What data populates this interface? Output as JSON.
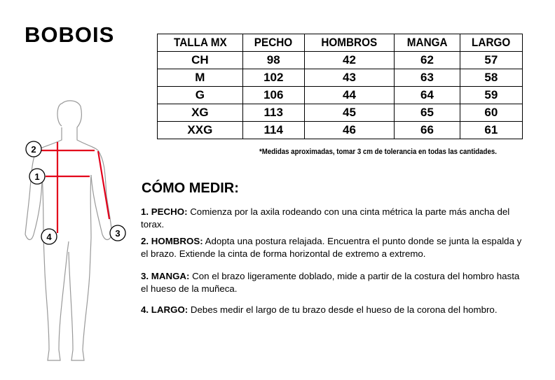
{
  "brand": "BOBOIS",
  "table": {
    "headers": [
      "TALLA MX",
      "PECHO",
      "HOMBROS",
      "MANGA",
      "LARGO"
    ],
    "rows": [
      [
        "CH",
        "98",
        "42",
        "62",
        "57"
      ],
      [
        "M",
        "102",
        "43",
        "63",
        "58"
      ],
      [
        "G",
        "106",
        "44",
        "64",
        "59"
      ],
      [
        "XG",
        "113",
        "45",
        "65",
        "60"
      ],
      [
        "XXG",
        "114",
        "46",
        "66",
        "61"
      ]
    ]
  },
  "note": "*Medidas aproximadas, tomar 3 cm de tolerancia en todas las cantidades.",
  "howto_title": "CÓMO MEDIR:",
  "steps": [
    {
      "label": "1. PECHO:",
      "text": " Comienza por la axila rodeando con una cinta métrica la parte más ancha del torax."
    },
    {
      "label": "2. HOMBROS:",
      "text": " Adopta una postura relajada. Encuentra el punto donde se junta la espalda y el brazo. Extiende la cinta de forma horizontal de extremo a extremo."
    },
    {
      "label": "3. MANGA:",
      "text": " Con el brazo ligeramente doblado, mide a partir de la costura del hombro hasta el hueso de la muñeca."
    },
    {
      "label": "4. LARGO:",
      "text": " Debes medir el largo de tu brazo desde el hueso de la corona del hombro."
    }
  ],
  "figure": {
    "markers": [
      "1",
      "2",
      "3",
      "4"
    ],
    "line_color": "#e3001b"
  }
}
